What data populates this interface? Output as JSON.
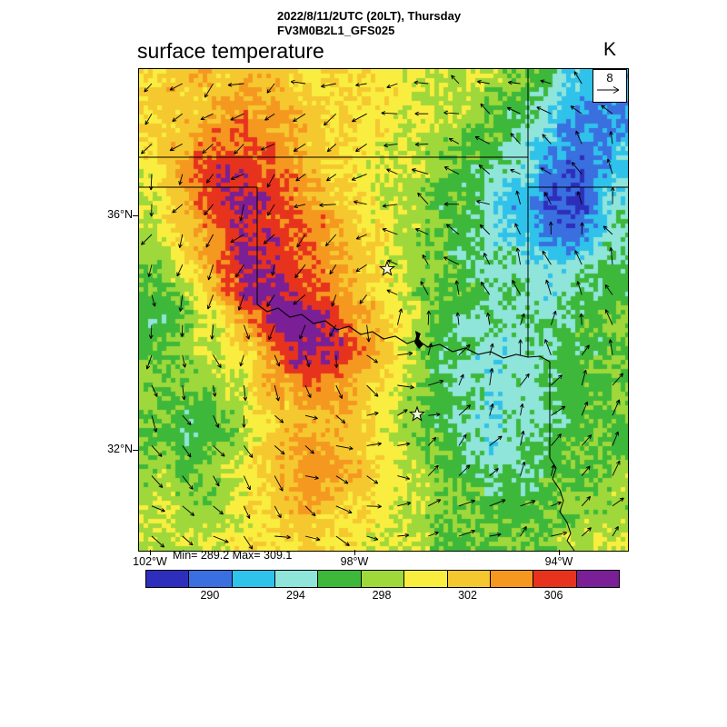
{
  "header": {
    "date_line": "2022/8/11/2UTC (20LT), Thursday",
    "model_line": "FV3M0B2L1_GFS025"
  },
  "plot": {
    "title": "surface temperature",
    "unit": "K"
  },
  "wind_reference": {
    "value": "8"
  },
  "axes": {
    "lat_labels": [
      {
        "text": "36°N"
      },
      {
        "text": "32°N"
      }
    ],
    "lon_labels": [
      {
        "text": "102°W"
      },
      {
        "text": "98°W"
      },
      {
        "text": "94°W"
      }
    ]
  },
  "stats_text": "Min= 289.2 Max= 309.1",
  "colorbar": {
    "min": 287,
    "max": 309,
    "step": 2,
    "colors": [
      "#2e2ebc",
      "#3a6fe0",
      "#2fc2ea",
      "#8fe5da",
      "#3db83a",
      "#9fd83a",
      "#f9ee3f",
      "#f6c830",
      "#f59820",
      "#e7331d",
      "#7a1f96"
    ],
    "tick_labels": [
      "290",
      "294",
      "298",
      "302",
      "306"
    ]
  },
  "chart_data": {
    "type": "heatmap",
    "title": "surface temperature",
    "units": "K",
    "model": "FV3M0B2L1_GFS025",
    "valid_time": "2022/8/11/2UTC (20LT), Thursday",
    "min": 289.2,
    "max": 309.1,
    "wind_reference_ms": 8,
    "lat_tick_labels": [
      "36°N",
      "32°N"
    ],
    "lon_tick_labels": [
      "102°W",
      "98°W",
      "94°W"
    ],
    "colorbar_tick_values": [
      290,
      294,
      298,
      302,
      306
    ],
    "temperature_bands_K": {
      "min": 287,
      "max": 309,
      "step": 2
    },
    "grid_size": [
      16,
      16
    ],
    "temperature_grid_K": [
      [
        301,
        302,
        302,
        303,
        302,
        301,
        301,
        300,
        300,
        299,
        299,
        298,
        297,
        295,
        292,
        291
      ],
      [
        301,
        302,
        303,
        304,
        303,
        302,
        301,
        300,
        300,
        299,
        298,
        297,
        296,
        293,
        291,
        290
      ],
      [
        301,
        303,
        305,
        305,
        304,
        302,
        301,
        300,
        299,
        298,
        297,
        296,
        294,
        292,
        290,
        292
      ],
      [
        300,
        304,
        306,
        307,
        305,
        303,
        301,
        300,
        299,
        298,
        296,
        295,
        293,
        291,
        289,
        293
      ],
      [
        299,
        303,
        306,
        307,
        306,
        304,
        302,
        300,
        299,
        297,
        296,
        294,
        292,
        289,
        288,
        294
      ],
      [
        298,
        302,
        305,
        307,
        306,
        305,
        303,
        301,
        299,
        297,
        295,
        294,
        293,
        290,
        290,
        295
      ],
      [
        297,
        300,
        304,
        308,
        307,
        305,
        303,
        301,
        299,
        297,
        296,
        295,
        294,
        293,
        294,
        296
      ],
      [
        296,
        298,
        302,
        308,
        308,
        306,
        304,
        302,
        300,
        297,
        296,
        295,
        295,
        294,
        295,
        296
      ],
      [
        296,
        297,
        299,
        303,
        307,
        308,
        306,
        303,
        300,
        297,
        295,
        294,
        295,
        295,
        296,
        297
      ],
      [
        297,
        298,
        299,
        301,
        305,
        308,
        307,
        304,
        300,
        296,
        295,
        294,
        294,
        295,
        296,
        297
      ],
      [
        298,
        297,
        298,
        300,
        303,
        305,
        304,
        302,
        299,
        296,
        295,
        294,
        294,
        295,
        296,
        297
      ],
      [
        297,
        296,
        296,
        299,
        301,
        303,
        303,
        301,
        299,
        296,
        295,
        294,
        294,
        295,
        296,
        297
      ],
      [
        297,
        296,
        297,
        299,
        302,
        304,
        303,
        301,
        299,
        297,
        295,
        294,
        295,
        296,
        297,
        297
      ],
      [
        298,
        297,
        298,
        300,
        302,
        304,
        304,
        302,
        300,
        298,
        296,
        295,
        295,
        296,
        297,
        298
      ],
      [
        299,
        298,
        298,
        300,
        301,
        303,
        302,
        301,
        300,
        298,
        297,
        296,
        296,
        297,
        297,
        298
      ],
      [
        299,
        299,
        299,
        300,
        301,
        302,
        301,
        300,
        299,
        298,
        297,
        297,
        297,
        298,
        298,
        299
      ]
    ],
    "wind": {
      "pattern": "cyclonic",
      "center_frac": [
        0.5,
        0.54
      ]
    },
    "map_overlays": {
      "state_borders": [
        [
          [
            0,
            97
          ],
          [
            428,
            97
          ]
        ],
        [
          [
            428,
            0
          ],
          [
            428,
            317
          ]
        ],
        [
          [
            428,
            130
          ],
          [
            538,
            130
          ]
        ],
        [
          [
            0,
            130
          ],
          [
            130,
            130
          ]
        ],
        [
          [
            130,
            130
          ],
          [
            130,
            259
          ]
        ],
        [
          [
            452,
            322
          ],
          [
            452,
            428
          ]
        ],
        [
          [
            452,
            428
          ],
          [
            459,
            439
          ],
          [
            455,
            451
          ],
          [
            463,
            463
          ],
          [
            467,
            475
          ],
          [
            463,
            487
          ],
          [
            471,
            499
          ],
          [
            475,
            511
          ],
          [
            471,
            519
          ],
          [
            479,
            530
          ]
        ]
      ],
      "red_river": [
        [
          130,
          259
        ],
        [
          141,
          267
        ],
        [
          153,
          263
        ],
        [
          166,
          273
        ],
        [
          179,
          270
        ],
        [
          192,
          280
        ],
        [
          205,
          277
        ],
        [
          218,
          287
        ],
        [
          231,
          283
        ],
        [
          244,
          292
        ],
        [
          257,
          289
        ],
        [
          269,
          297
        ],
        [
          282,
          294
        ],
        [
          295,
          302
        ],
        [
          306,
          298
        ],
        [
          318,
          306
        ],
        [
          331,
          303
        ],
        [
          345,
          311
        ],
        [
          359,
          307
        ],
        [
          373,
          314
        ],
        [
          387,
          311
        ],
        [
          401,
          318
        ],
        [
          415,
          314
        ],
        [
          428,
          317
        ],
        [
          441,
          316
        ],
        [
          452,
          322
        ]
      ],
      "lake": [
        [
          304,
          288
        ],
        [
          310,
          291
        ],
        [
          308,
          297
        ],
        [
          313,
          303
        ],
        [
          308,
          308
        ],
        [
          303,
          301
        ],
        [
          305,
          294
        ]
      ],
      "stars": [
        [
          273,
          220
        ],
        [
          306,
          380
        ]
      ]
    }
  }
}
